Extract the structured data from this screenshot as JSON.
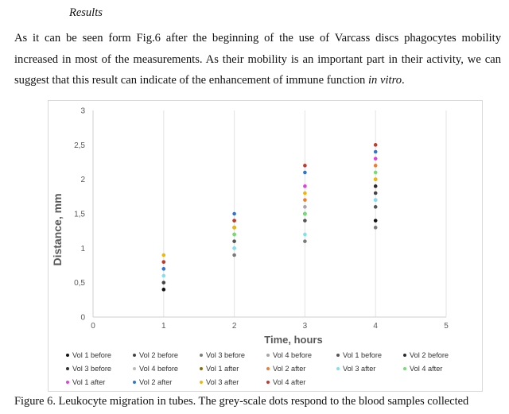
{
  "section_heading": "Results",
  "paragraph": {
    "text_main": "As it can be seen form Fig.6 after the beginning of the use of Varcass discs phagocytes mobility increased in most of the measurements. As their mobility is an important part in their activity, we can suggest that this result can indicate of the enhancement of immune function ",
    "text_italic": "in vitro",
    "text_end": "."
  },
  "caption": "Figure 6. Leukocyte migration in tubes. The grey-scale dots respond to the blood samples collected",
  "chart_data": {
    "type": "scatter",
    "xlabel": "Time, hours",
    "ylabel": "Distance, mm",
    "xlim": [
      0,
      5
    ],
    "ylim": [
      0,
      3
    ],
    "x_ticks": [
      "0",
      "1",
      "2",
      "3",
      "4",
      "5"
    ],
    "y_ticks": [
      "0",
      "0,5",
      "1",
      "1,5",
      "2",
      "2,5",
      "3"
    ],
    "grid": "vertical",
    "legend_position": "bottom",
    "series": [
      {
        "name": "Vol 1 before",
        "color": "#111111",
        "points": [
          [
            1,
            0.4
          ],
          [
            4,
            1.4
          ]
        ]
      },
      {
        "name": "Vol 2 before",
        "color": "#444444",
        "points": [
          [
            1,
            0.5
          ],
          [
            4,
            1.8
          ]
        ]
      },
      {
        "name": "Vol 3 before",
        "color": "#7a7a7a",
        "points": [
          [
            2,
            0.9
          ],
          [
            3,
            1.1
          ],
          [
            4,
            1.3
          ]
        ]
      },
      {
        "name": "Vol 4 before",
        "color": "#a6a6a6",
        "points": [
          [
            3,
            1.6
          ],
          [
            4,
            1.7
          ]
        ]
      },
      {
        "name": "Vol 1 before",
        "color": "#555555",
        "points": [
          [
            2,
            1.1
          ],
          [
            3,
            1.4
          ],
          [
            4,
            1.6
          ]
        ]
      },
      {
        "name": "Vol 2 before",
        "color": "#2b2b2b",
        "points": [
          [
            2,
            1.3
          ],
          [
            4,
            1.9
          ]
        ]
      },
      {
        "name": "Vol 3 before",
        "color": "#333333",
        "points": [
          [
            3,
            1.5
          ]
        ]
      },
      {
        "name": "Vol 4 before",
        "color": "#bbbbbb",
        "points": [
          [
            2,
            1.0
          ]
        ]
      },
      {
        "name": "Vol 1 after",
        "color": "#8a6d00",
        "points": [
          [
            2,
            1.2
          ],
          [
            4,
            2.0
          ]
        ]
      },
      {
        "name": "Vol 2 after",
        "color": "#ed7d31",
        "points": [
          [
            1,
            0.8
          ],
          [
            2,
            1.4
          ],
          [
            3,
            1.7
          ],
          [
            4,
            2.2
          ]
        ]
      },
      {
        "name": "Vol 3 after",
        "color": "#7fe0f0",
        "points": [
          [
            1,
            0.6
          ],
          [
            2,
            1.0
          ],
          [
            3,
            1.2
          ],
          [
            4,
            1.7
          ]
        ]
      },
      {
        "name": "Vol 4 after",
        "color": "#70e070",
        "points": [
          [
            2,
            1.2
          ],
          [
            3,
            1.5
          ],
          [
            4,
            2.1
          ]
        ]
      },
      {
        "name": "Vol 1 after",
        "color": "#e040e0",
        "points": [
          [
            3,
            1.9
          ],
          [
            4,
            2.3
          ]
        ]
      },
      {
        "name": "Vol 2 after",
        "color": "#2e75d6",
        "points": [
          [
            1,
            0.7
          ],
          [
            2,
            1.5
          ],
          [
            3,
            2.1
          ],
          [
            4,
            2.4
          ]
        ]
      },
      {
        "name": "Vol 3 after",
        "color": "#f2b705",
        "points": [
          [
            1,
            0.9
          ],
          [
            2,
            1.3
          ],
          [
            3,
            1.8
          ],
          [
            4,
            2.0
          ]
        ]
      },
      {
        "name": "Vol 4 after",
        "color": "#c0392b",
        "points": [
          [
            1,
            0.8
          ],
          [
            2,
            1.4
          ],
          [
            3,
            2.2
          ],
          [
            4,
            2.5
          ]
        ]
      }
    ]
  }
}
